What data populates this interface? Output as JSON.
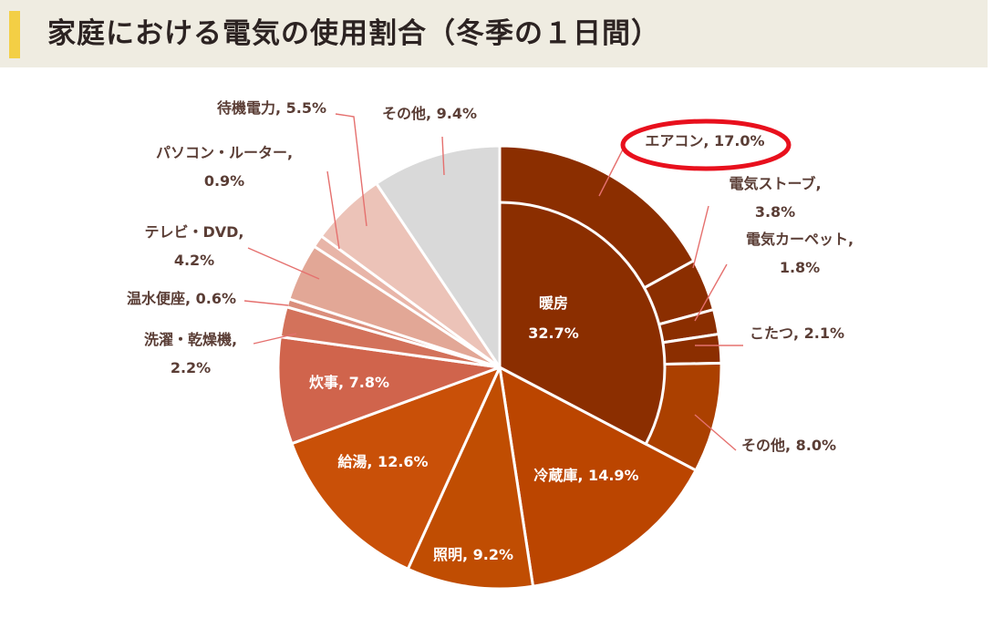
{
  "header": {
    "title": "家庭における電気の使用割合（冬季の１日間）"
  },
  "colors": {
    "background": "#ffffff",
    "header_bg": "#efece1",
    "accent_bar": "#f3cf45",
    "highlight_ring": "#e8101d"
  },
  "chart_data": {
    "type": "pie",
    "title": "家庭における電気の使用割合（冬季の１日間）",
    "slices": [
      {
        "label": "エアコン",
        "value": 17.0,
        "color": "#8b2e00",
        "group": "暖房",
        "highlighted": true
      },
      {
        "label": "電気ストーブ",
        "value": 3.8,
        "color": "#8b2e00",
        "group": "暖房"
      },
      {
        "label": "電気カーペット",
        "value": 1.8,
        "color": "#8b2e00",
        "group": "暖房"
      },
      {
        "label": "こたつ",
        "value": 2.1,
        "color": "#8b2e00",
        "group": "暖房"
      },
      {
        "label": "その他",
        "value": 8.0,
        "color": "#ab4000",
        "group": "暖房"
      },
      {
        "label": "冷蔵庫",
        "value": 14.9,
        "color": "#bb4500"
      },
      {
        "label": "照明",
        "value": 9.2,
        "color": "#c04d02"
      },
      {
        "label": "給湯",
        "value": 12.6,
        "color": "#c95008"
      },
      {
        "label": "炊事",
        "value": 7.8,
        "color": "#d0644c"
      },
      {
        "label": "洗濯・乾燥機",
        "value": 2.2,
        "color": "#d3725b"
      },
      {
        "label": "温水便座",
        "value": 0.6,
        "color": "#da8e7c"
      },
      {
        "label": "テレビ・DVD",
        "value": 4.2,
        "color": "#e2a796"
      },
      {
        "label": "パソコン・ルーター",
        "value": 0.9,
        "color": "#e8b5a8"
      },
      {
        "label": "待機電力",
        "value": 5.5,
        "color": "#ecc3b8"
      },
      {
        "label": "その他",
        "value": 9.4,
        "color": "#d9d9d9"
      }
    ],
    "inner_group": {
      "label": "暖房",
      "value": 32.7,
      "color": "#8b2e00"
    },
    "data_labels": [
      [
        "エアコン, 17.0%"
      ],
      [
        "電気ストーブ,",
        "3.8%"
      ],
      [
        "電気カーペット,",
        "1.8%"
      ],
      [
        "こたつ, 2.1%"
      ],
      [
        "その他, 8.0%"
      ],
      [
        "冷蔵庫, 14.9%"
      ],
      [
        "照明, 9.2%"
      ],
      [
        "給湯, 12.6%"
      ],
      [
        "炊事, 7.8%"
      ],
      [
        "洗濯・乾燥機,",
        "2.2%"
      ],
      [
        "温水便座, 0.6%"
      ],
      [
        "テレビ・DVD,",
        "4.2%"
      ],
      [
        "パソコン・ルーター,",
        "0.9%"
      ],
      [
        "待機電力, 5.5%"
      ],
      [
        "その他, 9.4%"
      ]
    ],
    "inner_label": [
      "暖房",
      "32.7%"
    ]
  }
}
